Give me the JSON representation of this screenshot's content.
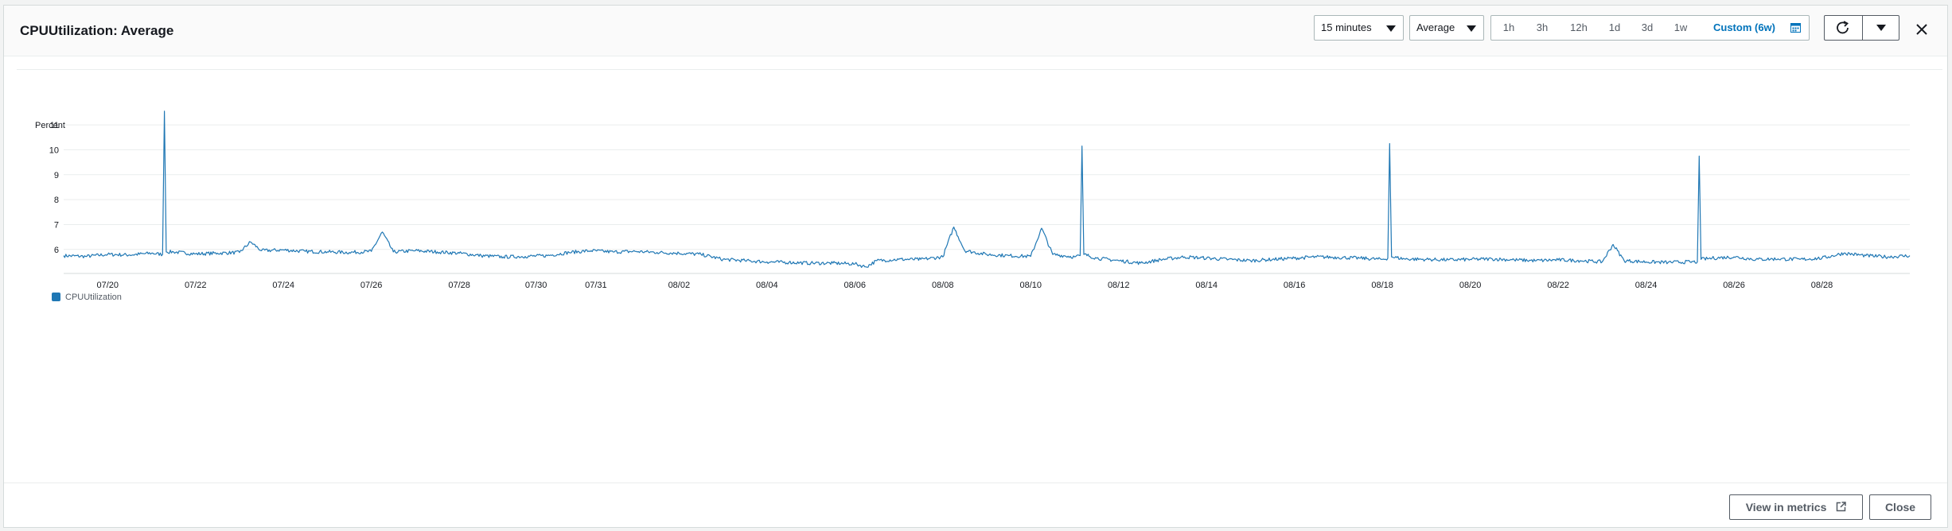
{
  "header": {
    "title": "CPUUtilization: Average",
    "period_select": "15 minutes",
    "stat_select": "Average",
    "ranges": [
      "1h",
      "3h",
      "12h",
      "1d",
      "3d",
      "1w"
    ],
    "custom_range": "Custom (6w)"
  },
  "footer": {
    "view_in_metrics": "View in metrics",
    "close": "Close"
  },
  "colors": {
    "series": "#1f77b4",
    "active_range": "#0073bb"
  },
  "chart_data": {
    "type": "line",
    "ylabel": "Percent",
    "yticks": [
      6,
      7,
      8,
      9,
      10,
      11
    ],
    "ylim": [
      5.1,
      11.8
    ],
    "xticks": [
      "07/20",
      "07/22",
      "07/24",
      "07/26",
      "07/28",
      "07/30",
      "07/31",
      "08/02",
      "08/04",
      "08/06",
      "08/08",
      "08/10",
      "08/12",
      "08/14",
      "08/16",
      "08/18",
      "08/20",
      "08/22",
      "08/24",
      "08/26",
      "08/28"
    ],
    "series": [
      {
        "name": "CPUUtilization",
        "color": "#1f77b4",
        "x": [
          "07/19 00:00",
          "07/19 12:00",
          "07/20 00:00",
          "07/20 12:00",
          "07/21 00:00",
          "07/21 06:00",
          "07/21 07:00",
          "07/21 08:00",
          "07/21 12:00",
          "07/22 00:00",
          "07/22 12:00",
          "07/23 00:00",
          "07/23 06:00",
          "07/23 12:00",
          "07/24 00:00",
          "07/24 12:00",
          "07/25 00:00",
          "07/25 12:00",
          "07/26 00:00",
          "07/26 06:00",
          "07/26 12:00",
          "07/27 00:00",
          "07/27 12:00",
          "07/28 00:00",
          "07/28 12:00",
          "07/29 00:00",
          "07/29 12:00",
          "07/30 00:00",
          "07/30 12:00",
          "07/31 00:00",
          "07/31 12:00",
          "08/01 00:00",
          "08/01 12:00",
          "08/02 00:00",
          "08/02 12:00",
          "08/03 00:00",
          "08/03 12:00",
          "08/04 00:00",
          "08/04 12:00",
          "08/05 00:00",
          "08/05 12:00",
          "08/06 00:00",
          "08/06 06:00",
          "08/06 12:00",
          "08/07 00:00",
          "08/07 12:00",
          "08/08 00:00",
          "08/08 06:00",
          "08/08 12:00",
          "08/09 00:00",
          "08/09 12:00",
          "08/10 00:00",
          "08/10 06:00",
          "08/10 12:00",
          "08/11 00:00",
          "08/11 03:00",
          "08/11 04:00",
          "08/11 05:00",
          "08/11 12:00",
          "08/12 00:00",
          "08/12 12:00",
          "08/13 00:00",
          "08/13 12:00",
          "08/14 00:00",
          "08/14 12:00",
          "08/15 00:00",
          "08/15 12:00",
          "08/16 00:00",
          "08/16 12:00",
          "08/17 00:00",
          "08/17 12:00",
          "08/18 00:00",
          "08/18 03:00",
          "08/18 04:00",
          "08/18 05:00",
          "08/18 12:00",
          "08/19 00:00",
          "08/19 12:00",
          "08/20 00:00",
          "08/20 12:00",
          "08/21 00:00",
          "08/21 12:00",
          "08/22 00:00",
          "08/22 12:00",
          "08/23 00:00",
          "08/23 06:00",
          "08/23 12:00",
          "08/24 00:00",
          "08/24 12:00",
          "08/25 00:00",
          "08/25 04:00",
          "08/25 05:00",
          "08/25 06:00",
          "08/25 12:00",
          "08/26 00:00",
          "08/26 12:00",
          "08/27 00:00",
          "08/27 12:00",
          "08/28 00:00",
          "08/28 12:00",
          "08/29 00:00",
          "08/29 12:00",
          "08/30 00:00"
        ],
        "y": [
          5.75,
          5.72,
          5.8,
          5.78,
          5.85,
          5.8,
          11.55,
          5.9,
          5.9,
          5.82,
          5.85,
          5.88,
          6.3,
          5.95,
          5.98,
          5.92,
          5.9,
          5.88,
          5.92,
          6.7,
          5.9,
          5.95,
          5.9,
          5.85,
          5.75,
          5.7,
          5.72,
          5.75,
          5.88,
          5.95,
          5.9,
          5.92,
          5.88,
          5.85,
          5.8,
          5.6,
          5.55,
          5.5,
          5.48,
          5.45,
          5.45,
          5.42,
          5.3,
          5.55,
          5.6,
          5.6,
          5.7,
          6.9,
          5.95,
          5.8,
          5.75,
          5.72,
          6.85,
          5.8,
          5.7,
          5.75,
          10.15,
          5.8,
          5.65,
          5.55,
          5.45,
          5.6,
          5.7,
          5.65,
          5.6,
          5.55,
          5.6,
          5.65,
          5.7,
          5.68,
          5.65,
          5.6,
          5.65,
          10.25,
          5.7,
          5.62,
          5.6,
          5.58,
          5.6,
          5.62,
          5.58,
          5.55,
          5.58,
          5.55,
          5.5,
          6.2,
          5.55,
          5.5,
          5.48,
          5.5,
          5.5,
          9.75,
          5.6,
          5.65,
          5.7,
          5.6,
          5.62,
          5.6,
          5.65,
          5.85,
          5.75,
          5.7,
          5.75
        ]
      }
    ]
  }
}
